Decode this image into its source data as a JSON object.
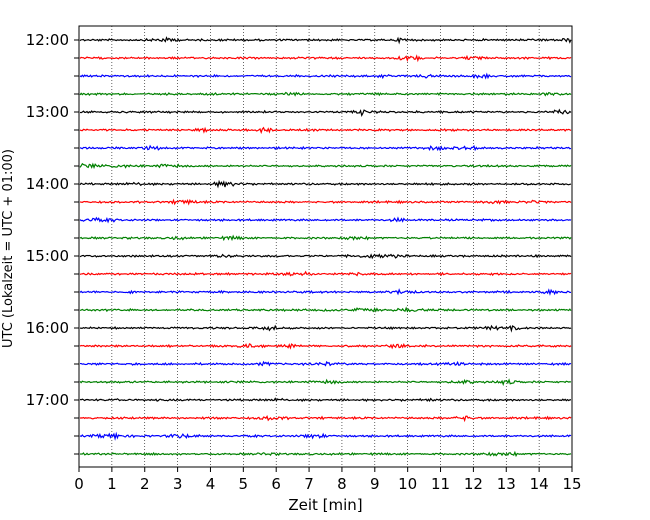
{
  "chart_data": {
    "type": "line",
    "title": "",
    "xlabel": "Zeit  [min]",
    "ylabel": "UTC (Lokalzeit = UTC + 01:00)",
    "xlim": [
      0,
      15
    ],
    "x_ticks": [
      "0",
      "1",
      "2",
      "3",
      "4",
      "5",
      "6",
      "7",
      "8",
      "9",
      "10",
      "11",
      "12",
      "13",
      "14",
      "15"
    ],
    "y_tick_labels": [
      "12:00",
      "13:00",
      "14:00",
      "15:00",
      "16:00",
      "17:00"
    ],
    "grid": {
      "vertical": "dotted",
      "horizontal": "none"
    },
    "colors": [
      "#000000",
      "#ff0000",
      "#0000ff",
      "#008000"
    ],
    "trace_count": 24,
    "trace_interval_min": 15,
    "start_time": "12:00",
    "series": [
      {
        "offset": "12:00",
        "color": "#000000"
      },
      {
        "offset": "12:15",
        "color": "#ff0000"
      },
      {
        "offset": "12:30",
        "color": "#0000ff"
      },
      {
        "offset": "12:45",
        "color": "#008000"
      },
      {
        "offset": "13:00",
        "color": "#000000"
      },
      {
        "offset": "13:15",
        "color": "#ff0000"
      },
      {
        "offset": "13:30",
        "color": "#0000ff"
      },
      {
        "offset": "13:45",
        "color": "#008000"
      },
      {
        "offset": "14:00",
        "color": "#000000"
      },
      {
        "offset": "14:15",
        "color": "#ff0000"
      },
      {
        "offset": "14:30",
        "color": "#0000ff"
      },
      {
        "offset": "14:45",
        "color": "#008000"
      },
      {
        "offset": "15:00",
        "color": "#000000"
      },
      {
        "offset": "15:15",
        "color": "#ff0000"
      },
      {
        "offset": "15:30",
        "color": "#0000ff"
      },
      {
        "offset": "15:45",
        "color": "#008000"
      },
      {
        "offset": "16:00",
        "color": "#000000"
      },
      {
        "offset": "16:15",
        "color": "#ff0000"
      },
      {
        "offset": "16:30",
        "color": "#0000ff"
      },
      {
        "offset": "16:45",
        "color": "#008000"
      },
      {
        "offset": "17:00",
        "color": "#000000"
      },
      {
        "offset": "17:15",
        "color": "#ff0000"
      },
      {
        "offset": "17:30",
        "color": "#0000ff"
      },
      {
        "offset": "17:45",
        "color": "#008000"
      }
    ]
  }
}
